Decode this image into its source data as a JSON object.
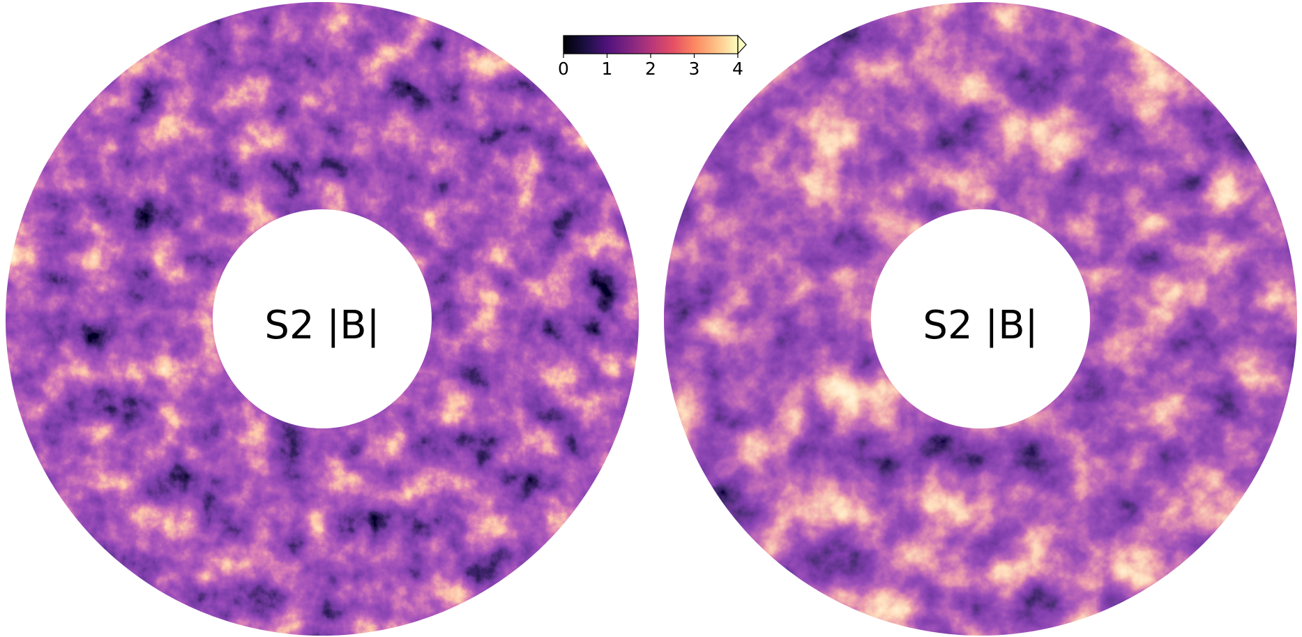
{
  "panels": [
    {
      "label": "S2 |B|"
    },
    {
      "label": "S2 |B|"
    }
  ],
  "colorbar": {
    "lim": [
      0,
      4
    ],
    "ticks": [
      0,
      1,
      2,
      3,
      4
    ],
    "extend": "max"
  }
}
